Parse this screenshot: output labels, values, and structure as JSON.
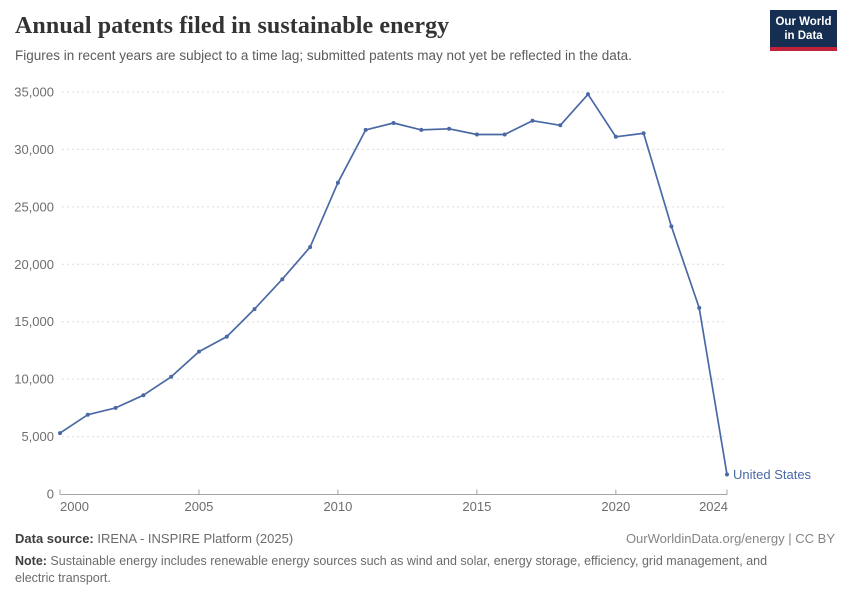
{
  "header": {
    "title": "Annual patents filed in sustainable energy",
    "subtitle": "Figures in recent years are subject to a time lag; submitted patents may not yet be reflected in the data.",
    "logo_line1": "Our World",
    "logo_line2": "in Data"
  },
  "colors": {
    "logo_bg": "#152e52",
    "logo_bar": "#c0223b",
    "series_blue": "#4a69a4",
    "grid": "#dcdcdc",
    "axis": "#a5a5a5",
    "tick_text": "#6e6e6e",
    "title_text": "#333333",
    "subtitle_text": "#5b5b5b"
  },
  "chart_data": {
    "type": "line",
    "title": "Annual patents filed in sustainable energy",
    "xlabel": "",
    "ylabel": "",
    "x": [
      2000,
      2001,
      2002,
      2003,
      2004,
      2005,
      2006,
      2007,
      2008,
      2009,
      2010,
      2011,
      2012,
      2013,
      2014,
      2015,
      2016,
      2017,
      2018,
      2019,
      2020,
      2021,
      2022,
      2023,
      2024
    ],
    "series": [
      {
        "name": "United States",
        "color": "#4a69a4",
        "values": [
          5300,
          6900,
          7500,
          8600,
          10200,
          12400,
          13700,
          16100,
          18700,
          21500,
          27100,
          31700,
          32300,
          31700,
          31800,
          31300,
          31300,
          32500,
          32100,
          34800,
          31100,
          31400,
          23300,
          16200,
          1700
        ]
      }
    ],
    "xlim": [
      2000,
      2024
    ],
    "ylim": [
      0,
      35000
    ],
    "xticks": [
      2000,
      2005,
      2010,
      2015,
      2020,
      2024
    ],
    "ytick_values": [
      0,
      5000,
      10000,
      15000,
      20000,
      25000,
      30000,
      35000
    ],
    "ytick_labels": [
      "0",
      "5,000",
      "10,000",
      "15,000",
      "20,000",
      "25,000",
      "30,000",
      "35,000"
    ],
    "grid": "horizontal-dashed",
    "legend_position": "end-of-line-label"
  },
  "footer": {
    "source_label": "Data source:",
    "source_value": " IRENA - INSPIRE Platform (2025)",
    "license": "OurWorldinData.org/energy | CC BY",
    "note_label": "Note:",
    "note_value": " Sustainable energy includes renewable energy sources such as wind and solar, energy storage, efficiency, grid management, and electric transport."
  }
}
